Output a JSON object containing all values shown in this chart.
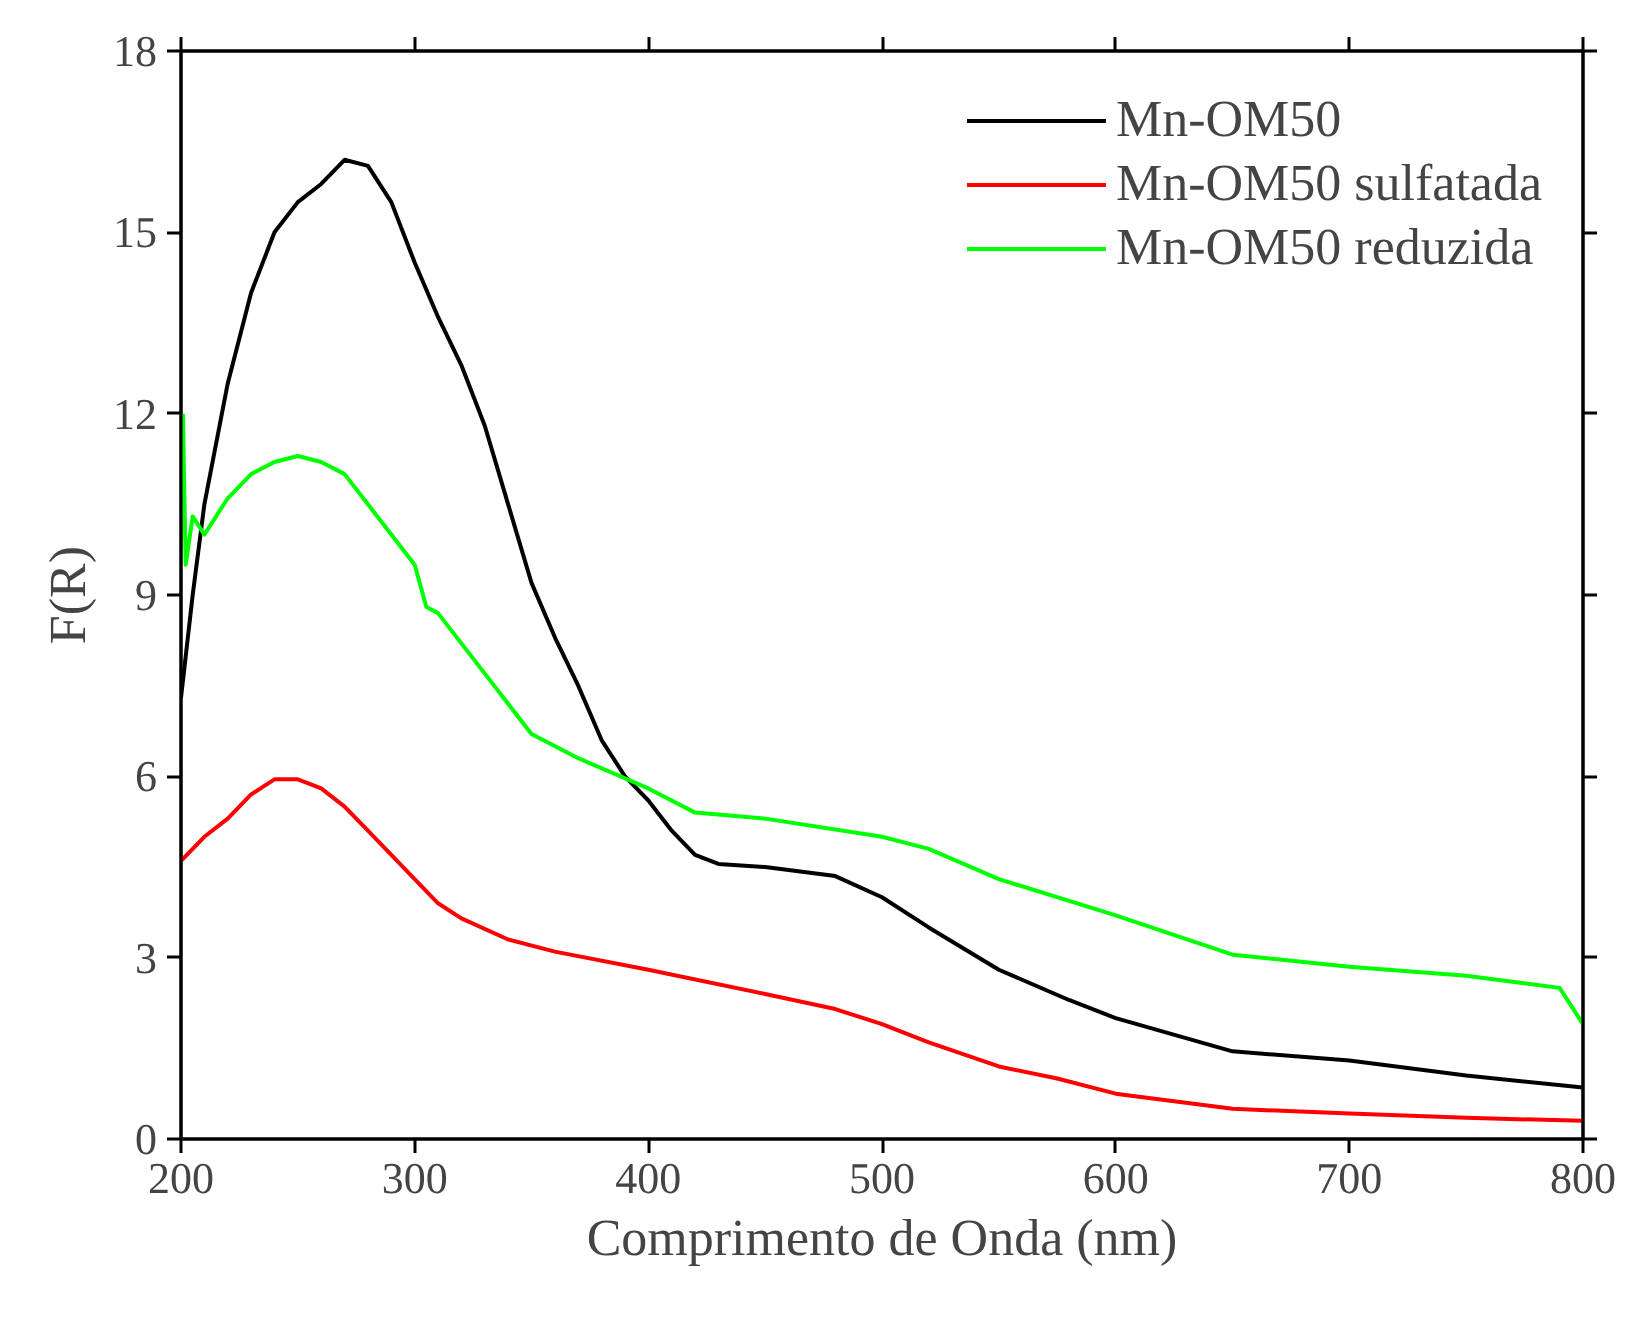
{
  "chart_data": {
    "type": "line",
    "xlabel": "Comprimento de Onda (nm)",
    "ylabel": "F(R)",
    "xlim": [
      200,
      800
    ],
    "ylim": [
      0,
      18
    ],
    "xticks": [
      200,
      300,
      400,
      500,
      600,
      700,
      800
    ],
    "yticks": [
      0,
      3,
      6,
      9,
      12,
      15,
      18
    ],
    "grid": false,
    "legend": "top right",
    "marker": "none",
    "line_style": "solid",
    "series": [
      {
        "name": "Mn-OM50",
        "color": "#000000",
        "x": [
          200,
          205,
          210,
          220,
          230,
          240,
          250,
          260,
          270,
          280,
          290,
          300,
          310,
          320,
          330,
          340,
          350,
          360,
          370,
          380,
          390,
          400,
          410,
          420,
          430,
          450,
          480,
          500,
          520,
          550,
          580,
          600,
          650,
          700,
          750,
          800
        ],
        "values": [
          7.3,
          9,
          10.5,
          12.5,
          14,
          15,
          15.5,
          15.8,
          16.2,
          16.1,
          15.5,
          14.5,
          13.6,
          12.8,
          11.8,
          10.5,
          9.2,
          8.3,
          7.5,
          6.6,
          6.0,
          5.6,
          5.1,
          4.7,
          4.55,
          4.5,
          4.35,
          4.0,
          3.5,
          2.8,
          2.3,
          2.0,
          1.45,
          1.3,
          1.05,
          0.85
        ]
      },
      {
        "name": "Mn-OM50 sulfatada",
        "color": "#ff0000",
        "x": [
          200,
          210,
          220,
          230,
          240,
          250,
          260,
          270,
          280,
          290,
          300,
          310,
          320,
          340,
          360,
          400,
          450,
          480,
          500,
          520,
          550,
          575,
          600,
          650,
          700,
          750,
          800
        ],
        "values": [
          4.6,
          5.0,
          5.3,
          5.7,
          5.95,
          5.95,
          5.8,
          5.5,
          5.1,
          4.7,
          4.3,
          3.9,
          3.65,
          3.3,
          3.1,
          2.8,
          2.4,
          2.15,
          1.9,
          1.6,
          1.2,
          1.0,
          0.75,
          0.5,
          0.42,
          0.35,
          0.3
        ]
      },
      {
        "name": "Mn-OM50 reduzida",
        "color": "#00ff00",
        "x": [
          200.8,
          202,
          205,
          210,
          220,
          230,
          240,
          250,
          260,
          270,
          280,
          290,
          300,
          305,
          310,
          320,
          340,
          350,
          370,
          400,
          420,
          450,
          500,
          520,
          550,
          600,
          650,
          700,
          750,
          790,
          800
        ],
        "values": [
          12,
          9.5,
          10.3,
          10,
          10.6,
          11,
          11.2,
          11.3,
          11.2,
          11,
          10.5,
          10.0,
          9.5,
          8.8,
          8.7,
          8.2,
          7.2,
          6.7,
          6.3,
          5.8,
          5.4,
          5.3,
          5.0,
          4.8,
          4.3,
          3.7,
          3.05,
          2.85,
          2.7,
          2.5,
          1.9
        ]
      }
    ]
  }
}
